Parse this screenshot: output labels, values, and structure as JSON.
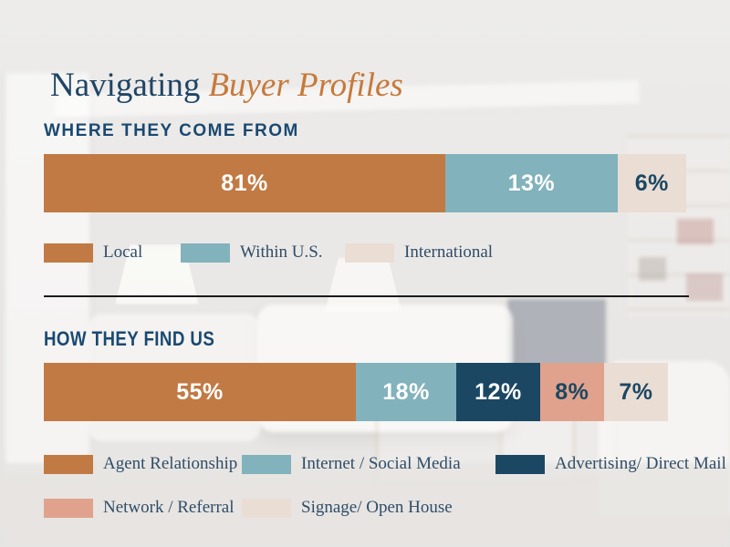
{
  "page": {
    "title_regular": "Navigating",
    "title_italic": "Buyer Profiles"
  },
  "colors": {
    "orange": "#C17A43",
    "teal": "#82B2BC",
    "navy": "#1B4763",
    "salmon": "#E0A28C",
    "beige": "#EADDD4",
    "title_blue": "#1F4566",
    "title_orange": "#C6793B",
    "header_blue": "#1A4971",
    "legend_text": "#2F4D68",
    "divider": "#1B1B1B",
    "white": "#FFFFFF"
  },
  "chart_data": [
    {
      "type": "bar",
      "title": "WHERE THEY COME FROM",
      "orientation": "horizontal-stacked",
      "unit": "%",
      "categories": [
        "Local",
        "Within U.S.",
        "International"
      ],
      "values": [
        81,
        13,
        6
      ],
      "legend_position": "below",
      "segments": [
        {
          "label": "Local",
          "value": 81,
          "display": "81%",
          "color": "#C17A43",
          "text_color": "#FFFFFF",
          "visual_width_pct": 62.5
        },
        {
          "label": "Within U.S.",
          "value": 13,
          "display": "13%",
          "color": "#82B2BC",
          "text_color": "#FFFFFF",
          "visual_width_pct": 26.8
        },
        {
          "label": "International",
          "value": 6,
          "display": "6%",
          "color": "#EADDD4",
          "text_color": "#1B4763",
          "visual_width_pct": 10.7
        }
      ]
    },
    {
      "type": "bar",
      "title": "HOW THEY FIND US",
      "orientation": "horizontal-stacked",
      "unit": "%",
      "categories": [
        "Agent Relationship",
        "Internet / Social Media",
        "Advertising/ Direct Mail",
        "Network / Referral",
        "Signage/ Open House"
      ],
      "values": [
        55,
        18,
        12,
        8,
        7
      ],
      "legend_position": "below",
      "segments": [
        {
          "label": "Agent Relationship",
          "value": 55,
          "display": "55%",
          "color": "#C17A43",
          "text_color": "#FFFFFF",
          "visual_width_pct": 50.0
        },
        {
          "label": "Internet / Social Media",
          "value": 18,
          "display": "18%",
          "color": "#82B2BC",
          "text_color": "#FFFFFF",
          "visual_width_pct": 16.1
        },
        {
          "label": "Advertising/ Direct Mail",
          "value": 12,
          "display": "12%",
          "color": "#1B4763",
          "text_color": "#FFFFFF",
          "visual_width_pct": 13.4
        },
        {
          "label": "Network / Referral",
          "value": 8,
          "display": "8%",
          "color": "#E0A28C",
          "text_color": "#1B4763",
          "visual_width_pct": 10.25
        },
        {
          "label": "Signage/ Open House",
          "value": 7,
          "display": "7%",
          "color": "#EADDD4",
          "text_color": "#1B4763",
          "visual_width_pct": 10.25
        }
      ]
    }
  ]
}
